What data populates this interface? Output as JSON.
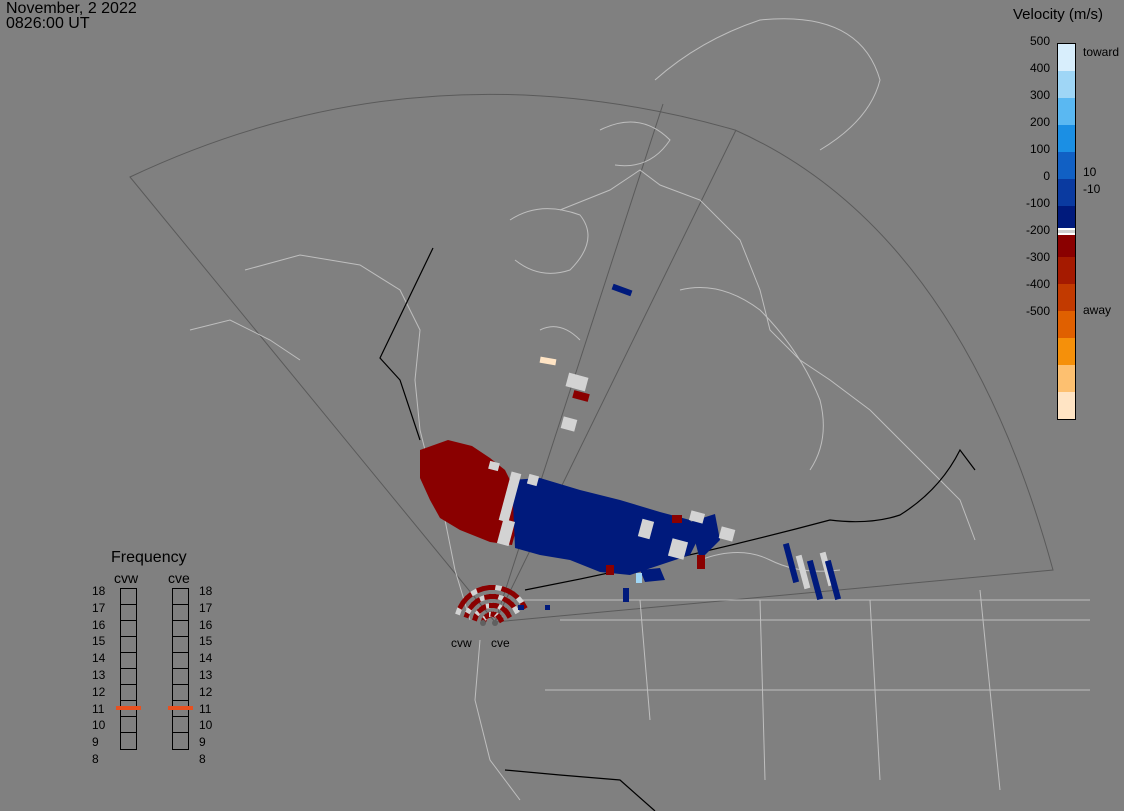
{
  "timestamp": {
    "date": "November, 2 2022",
    "time": "0826:00 UT"
  },
  "colorbar": {
    "title": "Velocity (m/s)",
    "ticks": [
      "500",
      "400",
      "300",
      "200",
      "100",
      "0",
      "-100",
      "-200",
      "-300",
      "-400",
      "-500"
    ],
    "label_toward": "toward",
    "label_away": "away",
    "label_pos_threshold": "10",
    "label_neg_threshold": "-10",
    "colors": {
      "toward": [
        "#d8eefc",
        "#9fd6f6",
        "#5ab8f2",
        "#1b8fe4",
        "#1160c4",
        "#0a3aa0",
        "#001a7c"
      ],
      "near_zero": "#d0d0d0",
      "away": [
        "#8a0000",
        "#a51a00",
        "#c23a00",
        "#e06000",
        "#f5900a",
        "#fdc070",
        "#ffe4c4"
      ]
    }
  },
  "frequency_panel": {
    "title": "Frequency",
    "radars": [
      {
        "code": "cvw",
        "frequency_mhz": 10.9
      },
      {
        "code": "cve",
        "frequency_mhz": 10.9
      }
    ],
    "scale": [
      "18",
      "17",
      "16",
      "15",
      "14",
      "13",
      "12",
      "11",
      "10",
      "9",
      "8"
    ],
    "indicator_color": "#e8501f"
  },
  "radars": [
    {
      "code": "cvw"
    },
    {
      "code": "cve"
    }
  ],
  "map_colors": {
    "background": "#808080",
    "coastline": "#bebebe",
    "border": "#000000",
    "fov": "#5a5a5a",
    "ground_scatter": "#d3d3d3"
  }
}
